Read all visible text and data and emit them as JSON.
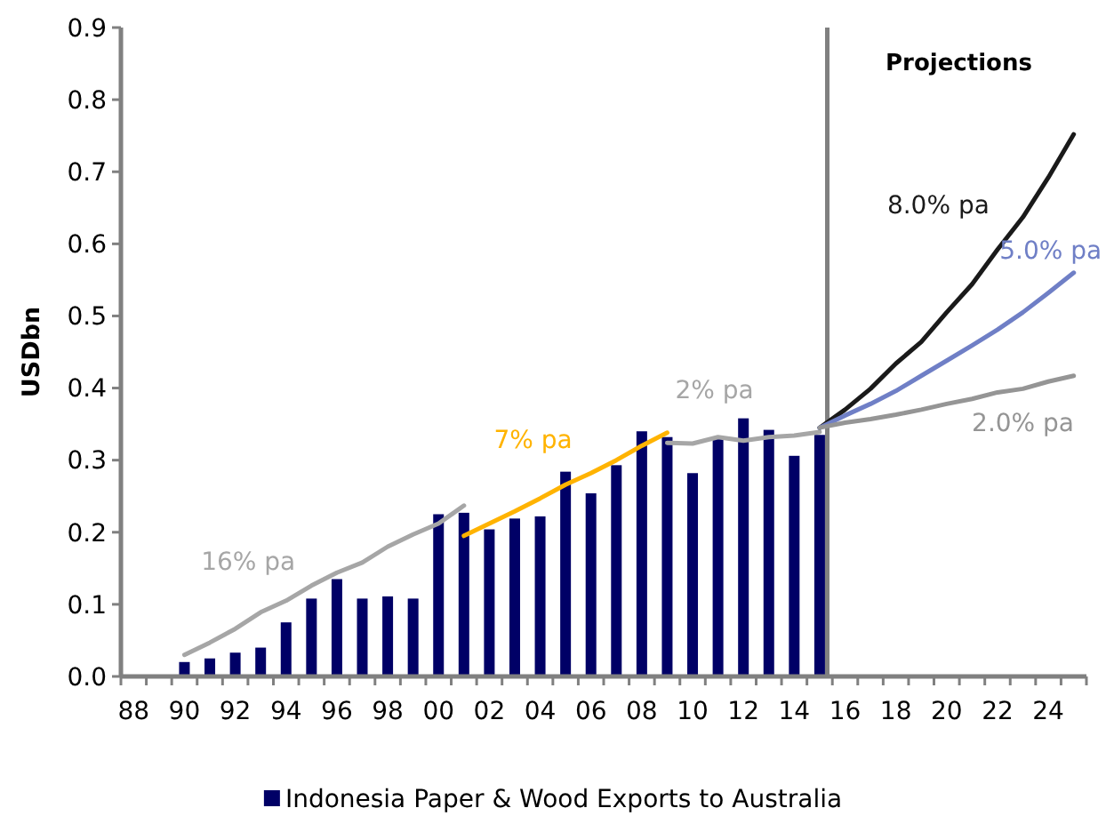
{
  "chart_data": {
    "type": "bar",
    "ylabel": "USDbn",
    "ylim": [
      0,
      0.9
    ],
    "yticks": [
      {
        "value": 0,
        "label": "0.0"
      },
      0.1,
      0.2,
      0.3,
      0.4,
      0.5,
      0.6,
      0.7,
      0.8,
      0.9
    ],
    "xlim": [
      1987.5,
      2025.5
    ],
    "xticks": [
      {
        "value": 1987.5,
        "label": null
      },
      {
        "value": 1988,
        "label": "88"
      },
      {
        "value": 1988.5,
        "label": null
      },
      {
        "value": 1989.5,
        "label": null
      },
      {
        "value": 1990,
        "label": "90"
      },
      {
        "value": 1990.5,
        "label": null
      },
      {
        "value": 1991.5,
        "label": null
      },
      {
        "value": 1992,
        "label": "92"
      },
      {
        "value": 1992.5,
        "label": null
      },
      {
        "value": 1993.5,
        "label": null
      },
      {
        "value": 1994,
        "label": "94"
      },
      {
        "value": 1994.5,
        "label": null
      },
      {
        "value": 1995.5,
        "label": null
      },
      {
        "value": 1996,
        "label": "96"
      },
      {
        "value": 1996.5,
        "label": null
      },
      {
        "value": 1997.5,
        "label": null
      },
      {
        "value": 1998,
        "label": "98"
      },
      {
        "value": 1998.5,
        "label": null
      },
      {
        "value": 1999.5,
        "label": null
      },
      {
        "value": 2000,
        "label": "00"
      },
      {
        "value": 2000.5,
        "label": null
      },
      {
        "value": 2001.5,
        "label": null
      },
      {
        "value": 2002,
        "label": "02"
      },
      {
        "value": 2002.5,
        "label": null
      },
      {
        "value": 2003.5,
        "label": null
      },
      {
        "value": 2004,
        "label": "04"
      },
      {
        "value": 2004.5,
        "label": null
      },
      {
        "value": 2005.5,
        "label": null
      },
      {
        "value": 2006,
        "label": "06"
      },
      {
        "value": 2006.5,
        "label": null
      },
      {
        "value": 2007.5,
        "label": null
      },
      {
        "value": 2008,
        "label": "08"
      },
      {
        "value": 2008.5,
        "label": null
      },
      {
        "value": 2009.5,
        "label": null
      },
      {
        "value": 2010,
        "label": "10"
      },
      {
        "value": 2010.5,
        "label": null
      },
      {
        "value": 2011.5,
        "label": null
      },
      {
        "value": 2012,
        "label": "12"
      },
      {
        "value": 2012.5,
        "label": null
      },
      {
        "value": 2013.5,
        "label": null
      },
      {
        "value": 2014,
        "label": "14"
      },
      {
        "value": 2014.5,
        "label": null
      },
      {
        "value": 2015.5,
        "label": null
      },
      {
        "value": 2016,
        "label": "16"
      },
      {
        "value": 2016.5,
        "label": null
      },
      {
        "value": 2017.5,
        "label": null
      },
      {
        "value": 2018,
        "label": "18"
      },
      {
        "value": 2018.5,
        "label": null
      },
      {
        "value": 2019.5,
        "label": null
      },
      {
        "value": 2020,
        "label": "20"
      },
      {
        "value": 2020.5,
        "label": null
      },
      {
        "value": 2021.5,
        "label": null
      },
      {
        "value": 2022,
        "label": "22"
      },
      {
        "value": 2022.5,
        "label": null
      },
      {
        "value": 2023.5,
        "label": null
      },
      {
        "value": 2024,
        "label": "24"
      },
      {
        "value": 2024.5,
        "label": null
      },
      {
        "value": 2025.5,
        "label": null
      }
    ],
    "legend": "bottom",
    "ref_lines": [
      {
        "axis": "x",
        "value": 2015.3,
        "label": "Projections",
        "color": "#808080"
      }
    ],
    "series": [
      {
        "name": "Indonesia Paper & Wood Exports to Australia",
        "color": "#000066",
        "x": [
          1990,
          1991,
          1992,
          1993,
          1994,
          1995,
          1996,
          1997,
          1998,
          1999,
          2000,
          2001,
          2002,
          2003,
          2004,
          2005,
          2006,
          2007,
          2008,
          2009,
          2010,
          2011,
          2012,
          2013,
          2014,
          2015
        ],
        "values": [
          0.02,
          0.025,
          0.033,
          0.04,
          0.075,
          0.108,
          0.135,
          0.108,
          0.111,
          0.108,
          0.225,
          0.227,
          0.204,
          0.219,
          0.222,
          0.284,
          0.254,
          0.293,
          0.34,
          0.332,
          0.282,
          0.33,
          0.358,
          0.342,
          0.306,
          0.335
        ]
      },
      {
        "type": "line",
        "name": "16% pa",
        "color": "#a6a6a6",
        "x": [
          1990,
          1991,
          1992,
          1993,
          1994,
          1995,
          1996,
          1997,
          1998,
          1999,
          2000,
          2001
        ],
        "values": [
          0.03,
          0.047,
          0.066,
          0.089,
          0.105,
          0.126,
          0.144,
          0.158,
          0.18,
          0.197,
          0.212,
          0.237
        ]
      },
      {
        "type": "line",
        "name": "7% pa",
        "color": "#ffb300",
        "x": [
          2001,
          2002,
          2003,
          2004,
          2005,
          2006,
          2007,
          2008,
          2009
        ],
        "values": [
          0.195,
          0.212,
          0.229,
          0.247,
          0.266,
          0.282,
          0.3,
          0.32,
          0.338
        ]
      },
      {
        "type": "line",
        "name": "2% pa",
        "color": "#a6a6a6",
        "x": [
          2009,
          2010,
          2011,
          2012,
          2013,
          2014,
          2015
        ],
        "values": [
          0.324,
          0.323,
          0.332,
          0.327,
          0.332,
          0.334,
          0.339
        ]
      },
      {
        "type": "line",
        "name": "8.0% pa",
        "color": "#1a1a1a",
        "x": [
          2015,
          2016,
          2017,
          2018,
          2019,
          2020,
          2021,
          2022,
          2023,
          2024,
          2025
        ],
        "values": [
          0.345,
          0.37,
          0.399,
          0.434,
          0.464,
          0.505,
          0.544,
          0.592,
          0.637,
          0.692,
          0.752
        ]
      },
      {
        "type": "line",
        "name": "5.0% pa",
        "color": "#6f7fc6",
        "x": [
          2015,
          2016,
          2017,
          2018,
          2019,
          2020,
          2021,
          2022,
          2023,
          2024,
          2025
        ],
        "values": [
          0.345,
          0.362,
          0.378,
          0.396,
          0.417,
          0.438,
          0.459,
          0.481,
          0.505,
          0.532,
          0.56
        ]
      },
      {
        "type": "line",
        "name": "2.0% pa",
        "color": "#959595",
        "x": [
          2015,
          2016,
          2017,
          2018,
          2019,
          2020,
          2021,
          2022,
          2023,
          2024,
          2025
        ],
        "values": [
          0.345,
          0.352,
          0.357,
          0.363,
          0.37,
          0.378,
          0.385,
          0.394,
          0.399,
          0.409,
          0.417
        ]
      }
    ]
  }
}
